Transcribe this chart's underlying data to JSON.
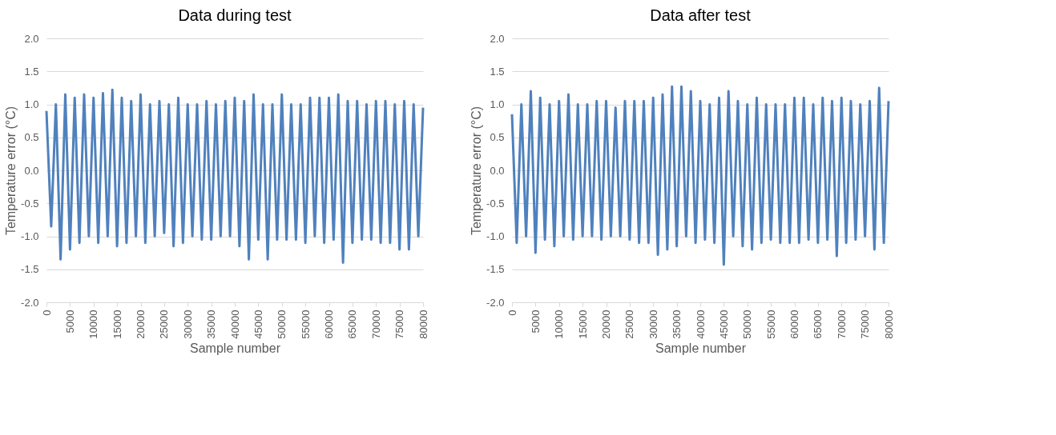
{
  "chart_data": [
    {
      "type": "line",
      "title": "Data during test",
      "xlabel": "Sample number",
      "ylabel": "Temperature error (°C)",
      "x": [
        0,
        1000,
        2000,
        3000,
        4000,
        5000,
        6000,
        7000,
        8000,
        9000,
        10000,
        11000,
        12000,
        13000,
        14000,
        15000,
        16000,
        17000,
        18000,
        19000,
        20000,
        21000,
        22000,
        23000,
        24000,
        25000,
        26000,
        27000,
        28000,
        29000,
        30000,
        31000,
        32000,
        33000,
        34000,
        35000,
        36000,
        37000,
        38000,
        39000,
        40000,
        41000,
        42000,
        43000,
        44000,
        45000,
        46000,
        47000,
        48000,
        49000,
        50000,
        51000,
        52000,
        53000,
        54000,
        55000,
        56000,
        57000,
        58000,
        59000,
        60000,
        61000,
        62000,
        63000,
        64000,
        65000,
        66000,
        67000,
        68000,
        69000,
        70000,
        71000,
        72000,
        73000,
        74000,
        75000,
        76000,
        77000,
        78000,
        79000,
        80000
      ],
      "series": [
        {
          "color": "#4f81bd",
          "values": [
            0.9,
            -0.85,
            1.0,
            -1.35,
            1.15,
            -1.2,
            1.1,
            -1.1,
            1.15,
            -1.0,
            1.1,
            -1.1,
            1.17,
            -1.0,
            1.22,
            -1.15,
            1.1,
            -1.1,
            1.05,
            -1.0,
            1.15,
            -1.1,
            1.0,
            -1.0,
            1.05,
            -0.95,
            1.0,
            -1.15,
            1.1,
            -1.1,
            1.0,
            -1.0,
            1.0,
            -1.05,
            1.05,
            -1.05,
            1.0,
            -1.0,
            1.05,
            -1.0,
            1.1,
            -1.15,
            1.05,
            -1.35,
            1.15,
            -1.05,
            1.0,
            -1.35,
            1.0,
            -1.05,
            1.15,
            -1.05,
            1.0,
            -1.05,
            1.0,
            -1.1,
            1.1,
            -1.0,
            1.1,
            -1.1,
            1.1,
            -1.05,
            1.15,
            -1.4,
            1.05,
            -1.1,
            1.05,
            -1.05,
            1.0,
            -1.05,
            1.05,
            -1.1,
            1.05,
            -1.1,
            1.0,
            -1.2,
            1.05,
            -1.2,
            1.0,
            -1.0,
            0.95
          ]
        }
      ],
      "xlim": [
        0,
        80000
      ],
      "xticks": [
        0,
        5000,
        10000,
        15000,
        20000,
        25000,
        30000,
        35000,
        40000,
        45000,
        50000,
        55000,
        60000,
        65000,
        70000,
        75000,
        80000
      ],
      "ylim": [
        -2,
        2
      ],
      "yticks": [
        {
          "value": -2,
          "label": "-2.0"
        },
        {
          "value": -1.5,
          "label": "-1.5"
        },
        {
          "value": -1,
          "label": "-1.0"
        },
        {
          "value": -0.5,
          "label": "-0.5"
        },
        {
          "value": 0,
          "label": "0.0"
        },
        {
          "value": 0.5,
          "label": "0.5"
        },
        {
          "value": 1,
          "label": "1.0"
        },
        {
          "value": 1.5,
          "label": "1.5"
        },
        {
          "value": 2,
          "label": "2.0"
        }
      ],
      "grid": "y",
      "marker": "none",
      "line_style": "solid"
    },
    {
      "type": "line",
      "title": "Data after test",
      "xlabel": "Sample number",
      "ylabel": "Temperature error (°C)",
      "x": [
        0,
        1000,
        2000,
        3000,
        4000,
        5000,
        6000,
        7000,
        8000,
        9000,
        10000,
        11000,
        12000,
        13000,
        14000,
        15000,
        16000,
        17000,
        18000,
        19000,
        20000,
        21000,
        22000,
        23000,
        24000,
        25000,
        26000,
        27000,
        28000,
        29000,
        30000,
        31000,
        32000,
        33000,
        34000,
        35000,
        36000,
        37000,
        38000,
        39000,
        40000,
        41000,
        42000,
        43000,
        44000,
        45000,
        46000,
        47000,
        48000,
        49000,
        50000,
        51000,
        52000,
        53000,
        54000,
        55000,
        56000,
        57000,
        58000,
        59000,
        60000,
        61000,
        62000,
        63000,
        64000,
        65000,
        66000,
        67000,
        68000,
        69000,
        70000,
        71000,
        72000,
        73000,
        74000,
        75000,
        76000,
        77000,
        78000,
        79000,
        80000
      ],
      "series": [
        {
          "color": "#4f81bd",
          "values": [
            0.85,
            -1.1,
            1.0,
            -1.0,
            1.2,
            -1.25,
            1.1,
            -1.05,
            1.0,
            -1.15,
            1.05,
            -1.0,
            1.15,
            -1.05,
            1.0,
            -1.0,
            1.0,
            -1.0,
            1.05,
            -1.05,
            1.05,
            -1.0,
            0.95,
            -1.0,
            1.05,
            -1.05,
            1.05,
            -1.1,
            1.05,
            -1.1,
            1.1,
            -1.28,
            1.15,
            -1.2,
            1.27,
            -1.15,
            1.27,
            -1.0,
            1.2,
            -1.1,
            1.05,
            -1.05,
            1.0,
            -1.1,
            1.1,
            -1.43,
            1.2,
            -1.0,
            1.05,
            -1.15,
            1.0,
            -1.2,
            1.1,
            -1.1,
            1.0,
            -1.05,
            1.0,
            -1.1,
            1.0,
            -1.1,
            1.1,
            -1.1,
            1.1,
            -1.05,
            1.0,
            -1.1,
            1.1,
            -1.05,
            1.05,
            -1.3,
            1.1,
            -1.1,
            1.05,
            -1.05,
            1.0,
            -1.0,
            1.05,
            -1.2,
            1.25,
            -1.1,
            1.05
          ]
        }
      ],
      "xlim": [
        0,
        80000
      ],
      "xticks": [
        0,
        5000,
        10000,
        15000,
        20000,
        25000,
        30000,
        35000,
        40000,
        45000,
        50000,
        55000,
        60000,
        65000,
        70000,
        75000,
        80000
      ],
      "ylim": [
        -2,
        2
      ],
      "yticks": [
        {
          "value": -2,
          "label": "-2.0"
        },
        {
          "value": -1.5,
          "label": "-1.5"
        },
        {
          "value": -1,
          "label": "-1.0"
        },
        {
          "value": -0.5,
          "label": "-0.5"
        },
        {
          "value": 0,
          "label": "0.0"
        },
        {
          "value": 0.5,
          "label": "0.5"
        },
        {
          "value": 1,
          "label": "1.0"
        },
        {
          "value": 1.5,
          "label": "1.5"
        },
        {
          "value": 2,
          "label": "2.0"
        }
      ],
      "grid": "y",
      "marker": "none",
      "line_style": "solid"
    }
  ]
}
